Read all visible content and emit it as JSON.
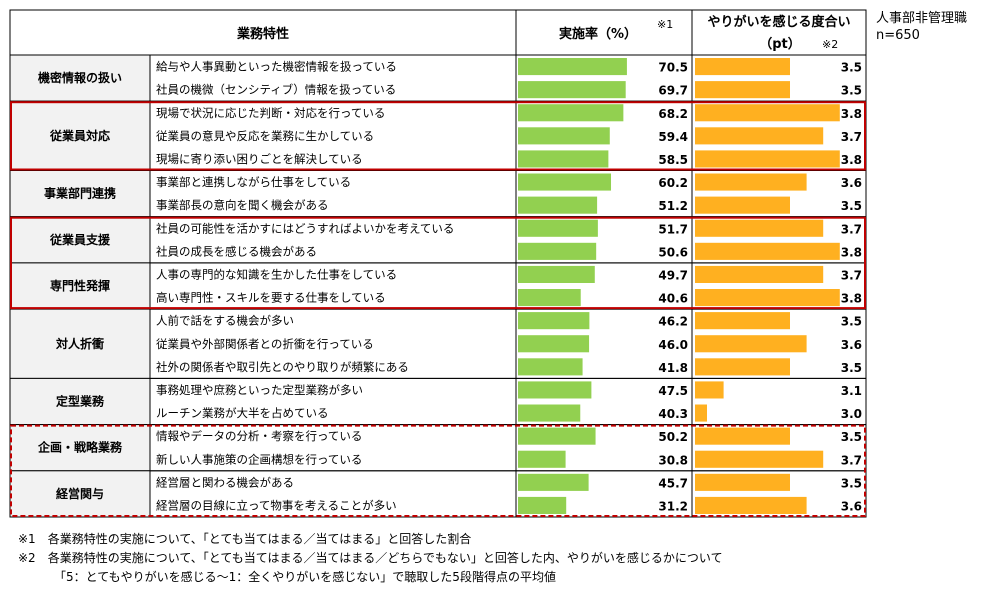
{
  "chart_data": {
    "type": "bar",
    "headers": {
      "feature": "業務特性",
      "rate": "実施率（%）",
      "rate_note": "※1",
      "score_line1": "やりがいを感じる度合い",
      "score_line2": "（pt）",
      "score_note": "※2"
    },
    "side_note": [
      "人事部非管理職",
      "n=650"
    ],
    "groups": [
      {
        "name": "機密情報の扱い",
        "items": [
          {
            "label": "給与や人事異動といった機密情報を扱っている",
            "rate": 70.5,
            "score": 3.5
          },
          {
            "label": "社員の機微（センシティブ）情報を扱っている",
            "rate": 69.7,
            "score": 3.5
          }
        ]
      },
      {
        "name": "従業員対応",
        "items": [
          {
            "label": "現場で状況に応じた判断・対応を行っている",
            "rate": 68.2,
            "score": 3.8
          },
          {
            "label": "従業員の意見や反応を業務に生かしている",
            "rate": 59.4,
            "score": 3.7
          },
          {
            "label": "現場に寄り添い困りごとを解決している",
            "rate": 58.5,
            "score": 3.8
          }
        ]
      },
      {
        "name": "事業部門連携",
        "items": [
          {
            "label": "事業部と連携しながら仕事をしている",
            "rate": 60.2,
            "score": 3.6
          },
          {
            "label": "事業部長の意向を聞く機会がある",
            "rate": 51.2,
            "score": 3.5
          }
        ]
      },
      {
        "name": "従業員支援",
        "items": [
          {
            "label": "社員の可能性を活かすにはどうすればよいかを考えている",
            "rate": 51.7,
            "score": 3.7
          },
          {
            "label": "社員の成長を感じる機会がある",
            "rate": 50.6,
            "score": 3.8
          }
        ]
      },
      {
        "name": "専門性発揮",
        "items": [
          {
            "label": "人事の専門的な知識を生かした仕事をしている",
            "rate": 49.7,
            "score": 3.7
          },
          {
            "label": "高い専門性・スキルを要する仕事をしている",
            "rate": 40.6,
            "score": 3.8
          }
        ]
      },
      {
        "name": "対人折衝",
        "items": [
          {
            "label": "人前で話をする機会が多い",
            "rate": 46.2,
            "score": 3.5
          },
          {
            "label": "従業員や外部関係者との折衝を行っている",
            "rate": 46.0,
            "score": 3.6
          },
          {
            "label": "社外の関係者や取引先とのやり取りが頻繁にある",
            "rate": 41.8,
            "score": 3.5
          }
        ]
      },
      {
        "name": "定型業務",
        "items": [
          {
            "label": "事務処理や庶務といった定型業務が多い",
            "rate": 47.5,
            "score": 3.1
          },
          {
            "label": "ルーチン業務が大半を占めている",
            "rate": 40.3,
            "score": 3.0
          }
        ]
      },
      {
        "name": "企画・戦略業務",
        "items": [
          {
            "label": "情報やデータの分析・考察を行っている",
            "rate": 50.2,
            "score": 3.5
          },
          {
            "label": "新しい人事施策の企画構想を行っている",
            "rate": 30.8,
            "score": 3.7
          }
        ]
      },
      {
        "name": "経営関与",
        "items": [
          {
            "label": "経営層と関わる機会がある",
            "rate": 45.7,
            "score": 3.5
          },
          {
            "label": "経営層の目線に立って物事を考えることが多い",
            "rate": 31.2,
            "score": 3.6
          }
        ]
      }
    ],
    "highlights": [
      {
        "groups": [
          1
        ],
        "style": "solid"
      },
      {
        "groups": [
          3,
          4
        ],
        "style": "solid"
      },
      {
        "groups": [
          7,
          8
        ],
        "style": "dashed"
      }
    ],
    "colors": {
      "rate_bar": "#92d050",
      "score_bar": "#ffb020",
      "highlight": "#c00000",
      "cat_bg": "#f2f2f2"
    },
    "rate_range": [
      0,
      100
    ],
    "score_range": [
      3.0,
      3.8
    ]
  },
  "footnotes": [
    "※1　各業務特性の実施について、「とても当てはまる／当てはまる」と回答した割合",
    "※2　各業務特性の実施について、「とても当てはまる／当てはまる／どちらでもない」と回答した内、やりがいを感じるかについて",
    "「5：とてもやりがいを感じる〜1：全くやりがいを感じない」で聴取した5段階得点の平均値"
  ]
}
